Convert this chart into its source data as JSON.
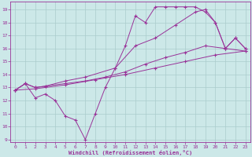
{
  "xlabel": "Windchill (Refroidissement éolien,°C)",
  "background_color": "#cce8e8",
  "grid_color": "#aacccc",
  "line_color": "#993399",
  "spine_color": "#7755aa",
  "xlim": [
    -0.5,
    23.5
  ],
  "ylim": [
    8.8,
    19.6
  ],
  "yticks": [
    9,
    10,
    11,
    12,
    13,
    14,
    15,
    16,
    17,
    18,
    19
  ],
  "xticks": [
    0,
    1,
    2,
    3,
    4,
    5,
    6,
    7,
    8,
    9,
    10,
    11,
    12,
    13,
    14,
    15,
    16,
    17,
    18,
    19,
    20,
    21,
    22,
    23
  ],
  "series1_x": [
    0,
    1,
    2,
    3,
    4,
    5,
    6,
    7,
    8,
    9,
    10,
    11,
    12,
    13,
    14,
    15,
    16,
    17,
    18,
    19,
    20,
    21,
    22,
    23
  ],
  "series1_y": [
    12.8,
    13.3,
    12.2,
    12.5,
    12.0,
    10.8,
    10.5,
    9.0,
    11.0,
    13.0,
    14.5,
    16.2,
    18.5,
    18.0,
    19.2,
    19.2,
    19.2,
    19.2,
    19.2,
    18.8,
    18.0,
    16.0,
    16.8,
    16.0
  ],
  "series2_x": [
    0,
    1,
    2,
    3,
    5,
    7,
    9,
    11,
    13,
    15,
    17,
    19,
    21,
    23
  ],
  "series2_y": [
    12.8,
    13.3,
    13.0,
    13.1,
    13.3,
    13.5,
    13.8,
    14.2,
    14.8,
    15.3,
    15.7,
    16.2,
    16.0,
    15.8
  ],
  "series3_x": [
    0,
    1,
    2,
    3,
    5,
    7,
    10,
    12,
    14,
    16,
    18,
    19,
    20,
    21,
    22,
    23
  ],
  "series3_y": [
    12.8,
    13.3,
    13.0,
    13.1,
    13.5,
    13.8,
    14.5,
    16.2,
    16.8,
    17.8,
    18.8,
    19.0,
    18.0,
    16.0,
    16.8,
    16.0
  ],
  "series4_x": [
    0,
    2,
    5,
    8,
    11,
    14,
    17,
    20,
    23
  ],
  "series4_y": [
    12.8,
    12.9,
    13.2,
    13.6,
    14.0,
    14.5,
    15.0,
    15.5,
    15.8
  ]
}
